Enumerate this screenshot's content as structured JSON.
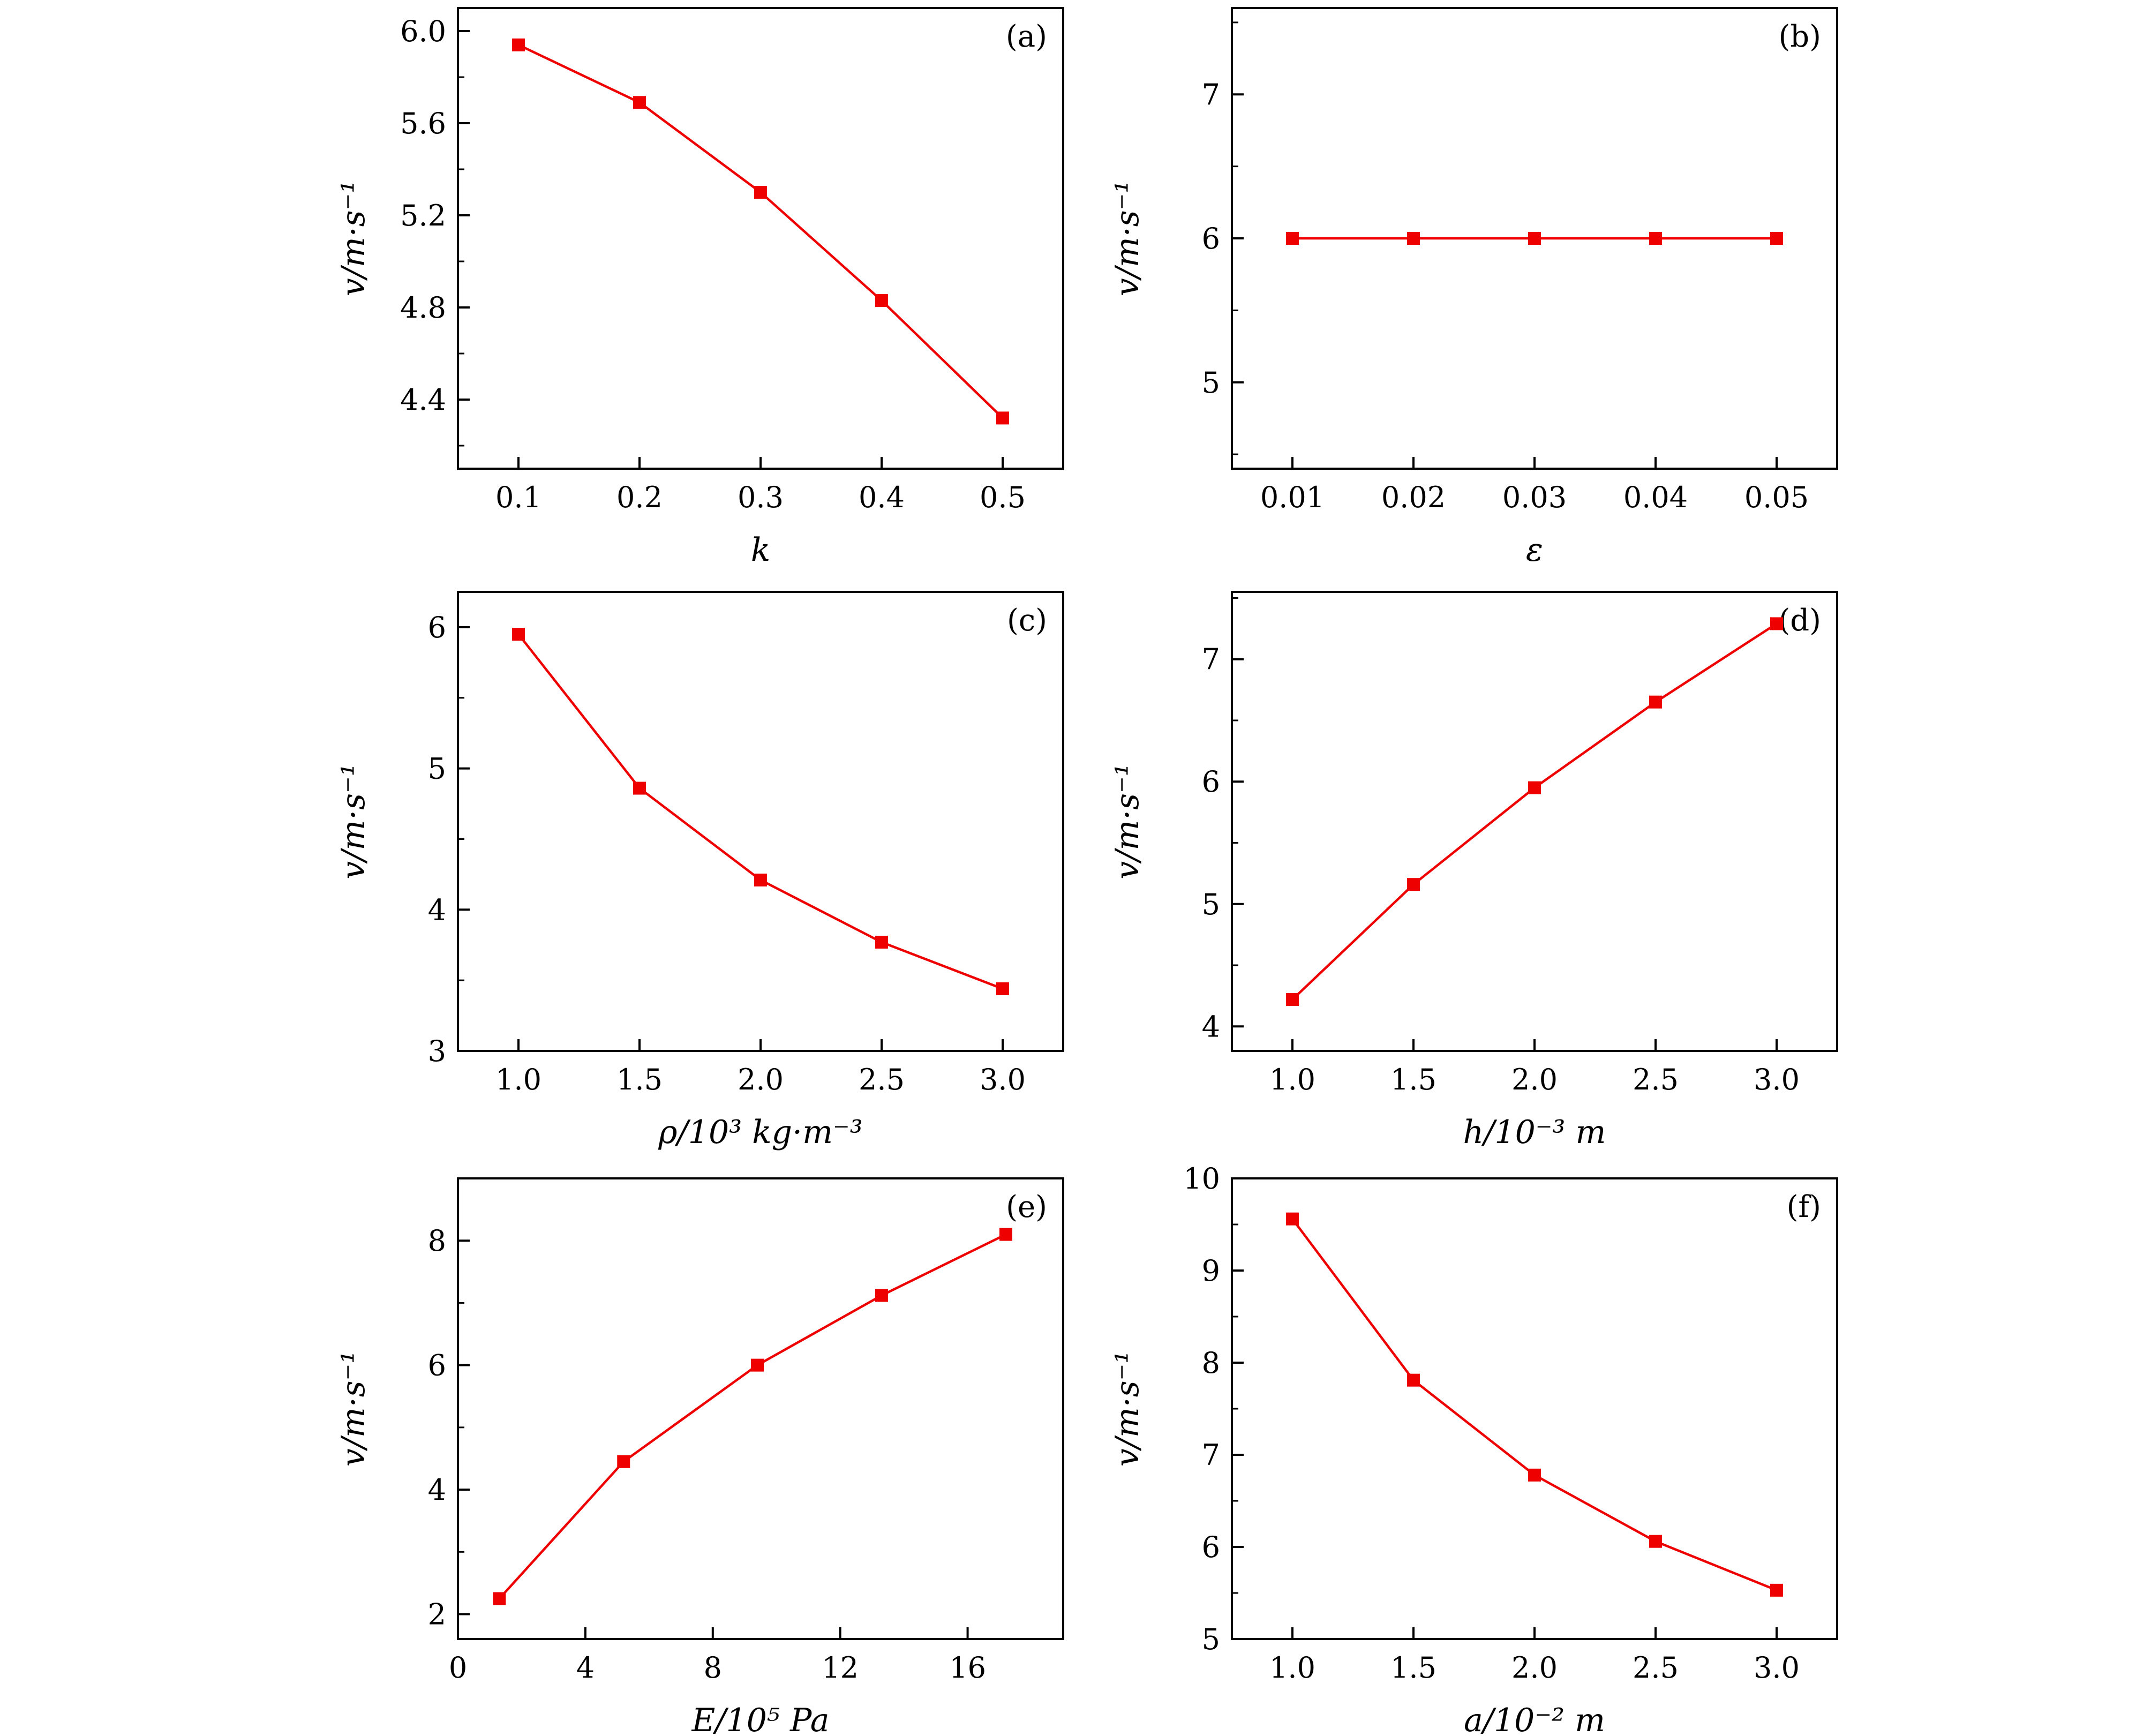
{
  "figure": {
    "ylabel": "v/m·s⁻¹",
    "series_color": "#ee0000"
  },
  "chart_data": [
    {
      "type": "line",
      "panel": "(a)",
      "xlabel": "k",
      "ylabel": "v/m·s⁻¹",
      "x": [
        0.1,
        0.2,
        0.3,
        0.4,
        0.5
      ],
      "y": [
        5.94,
        5.69,
        5.3,
        4.83,
        4.32
      ],
      "xlim": [
        0.05,
        0.55
      ],
      "ylim": [
        4.1,
        6.1
      ],
      "xticks": [
        0.1,
        0.2,
        0.3,
        0.4,
        0.5
      ],
      "xtick_labels": [
        "0.1",
        "0.2",
        "0.3",
        "0.4",
        "0.5"
      ],
      "yticks": [
        4.4,
        4.8,
        5.2,
        5.6,
        6.0
      ],
      "ytick_labels": [
        "4.4",
        "4.8",
        "5.2",
        "5.6",
        "6.0"
      ],
      "yminor": [
        4.2,
        4.6,
        5.0,
        5.4,
        5.8
      ]
    },
    {
      "type": "line",
      "panel": "(b)",
      "xlabel": "ε",
      "ylabel": "v/m·s⁻¹",
      "x": [
        0.01,
        0.02,
        0.03,
        0.04,
        0.05
      ],
      "y": [
        6.0,
        6.0,
        6.0,
        6.0,
        6.0
      ],
      "xlim": [
        0.005,
        0.055
      ],
      "ylim": [
        4.4,
        7.6
      ],
      "xticks": [
        0.01,
        0.02,
        0.03,
        0.04,
        0.05
      ],
      "xtick_labels": [
        "0.01",
        "0.02",
        "0.03",
        "0.04",
        "0.05"
      ],
      "yticks": [
        5,
        6,
        7
      ],
      "ytick_labels": [
        "5",
        "6",
        "7"
      ],
      "yminor": [
        4.5,
        5.5,
        6.5,
        7.5
      ]
    },
    {
      "type": "line",
      "panel": "(c)",
      "xlabel": "ρ/10³ kg·m⁻³",
      "ylabel": "v/m·s⁻¹",
      "x": [
        1.0,
        1.5,
        2.0,
        2.5,
        3.0
      ],
      "y": [
        5.95,
        4.86,
        4.21,
        3.77,
        3.44
      ],
      "xlim": [
        0.75,
        3.25
      ],
      "ylim": [
        3.0,
        6.25
      ],
      "xticks": [
        1.0,
        1.5,
        2.0,
        2.5,
        3.0
      ],
      "xtick_labels": [
        "1.0",
        "1.5",
        "2.0",
        "2.5",
        "3.0"
      ],
      "yticks": [
        3,
        4,
        5,
        6
      ],
      "ytick_labels": [
        "3",
        "4",
        "5",
        "6"
      ],
      "yminor": [
        3.5,
        4.5,
        5.5
      ]
    },
    {
      "type": "line",
      "panel": "(d)",
      "xlabel": "h/10⁻³ m",
      "ylabel": "v/m·s⁻¹",
      "x": [
        1.0,
        1.5,
        2.0,
        2.5,
        3.0
      ],
      "y": [
        4.22,
        5.16,
        5.95,
        6.65,
        7.29
      ],
      "xlim": [
        0.75,
        3.25
      ],
      "ylim": [
        3.8,
        7.55
      ],
      "xticks": [
        1.0,
        1.5,
        2.0,
        2.5,
        3.0
      ],
      "xtick_labels": [
        "1.0",
        "1.5",
        "2.0",
        "2.5",
        "3.0"
      ],
      "yticks": [
        4,
        5,
        6,
        7
      ],
      "ytick_labels": [
        "4",
        "5",
        "6",
        "7"
      ],
      "yminor": [
        4.5,
        5.5,
        6.5,
        7.5
      ]
    },
    {
      "type": "line",
      "panel": "(e)",
      "xlabel": "E/10⁵ Pa",
      "ylabel": "v/m·s⁻¹",
      "x": [
        1.3,
        5.2,
        9.4,
        13.3,
        17.2
      ],
      "y": [
        2.25,
        4.45,
        6.0,
        7.12,
        8.1
      ],
      "xlim": [
        0,
        19
      ],
      "ylim": [
        1.6,
        9.0
      ],
      "xticks": [
        0,
        4,
        8,
        12,
        16
      ],
      "xtick_labels": [
        "0",
        "4",
        "8",
        "12",
        "16"
      ],
      "yticks": [
        2,
        4,
        6,
        8
      ],
      "ytick_labels": [
        "2",
        "4",
        "6",
        "8"
      ],
      "yminor": [
        3,
        5,
        7
      ]
    },
    {
      "type": "line",
      "panel": "(f)",
      "xlabel": "a/10⁻² m",
      "ylabel": "v/m·s⁻¹",
      "x": [
        1.0,
        1.5,
        2.0,
        2.5,
        3.0
      ],
      "y": [
        9.56,
        7.81,
        6.78,
        6.06,
        5.53
      ],
      "xlim": [
        0.75,
        3.25
      ],
      "ylim": [
        5.0,
        10.0
      ],
      "xticks": [
        1.0,
        1.5,
        2.0,
        2.5,
        3.0
      ],
      "xtick_labels": [
        "1.0",
        "1.5",
        "2.0",
        "2.5",
        "3.0"
      ],
      "yticks": [
        5,
        6,
        7,
        8,
        9,
        10
      ],
      "ytick_labels": [
        "5",
        "6",
        "7",
        "8",
        "9",
        "10"
      ],
      "yminor": [
        5.5,
        6.5,
        7.5,
        8.5,
        9.5
      ]
    }
  ]
}
